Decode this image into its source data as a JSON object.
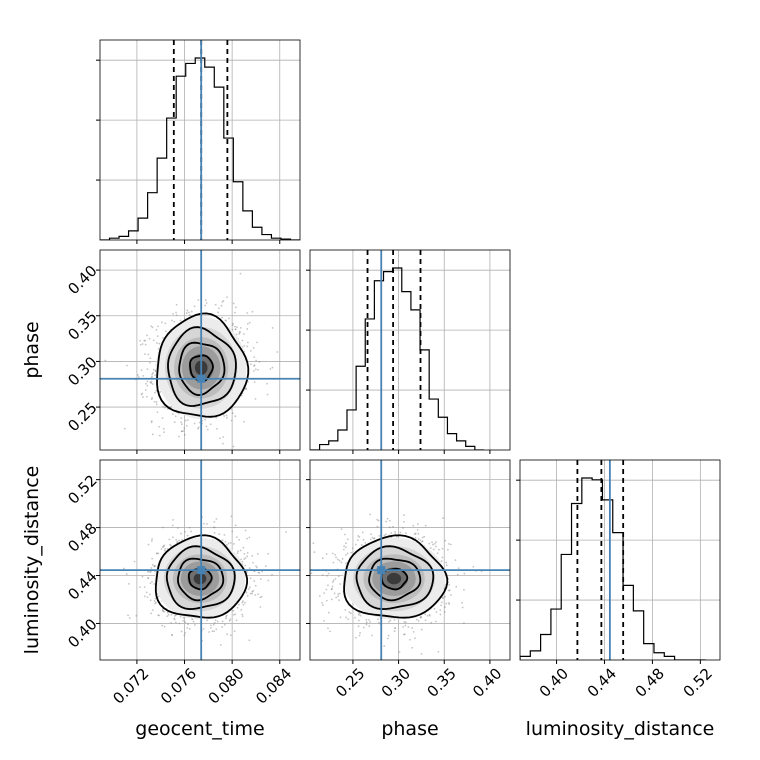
{
  "chart_data": {
    "type": "corner",
    "parameters": [
      {
        "name": "geocent_time",
        "ticks": [
          "0.072",
          "0.076",
          "0.080",
          "0.084"
        ],
        "tick_values": [
          0.072,
          0.076,
          0.08,
          0.084
        ],
        "range": [
          0.0689,
          0.0857
        ],
        "truth": 0.0774,
        "quantiles": [
          0.0751,
          0.0774,
          0.0796
        ]
      },
      {
        "name": "phase",
        "ticks": [
          "0.25",
          "0.30",
          "0.35",
          "0.40"
        ],
        "tick_values": [
          0.25,
          0.3,
          0.35,
          0.4
        ],
        "range": [
          0.203,
          0.422
        ],
        "truth": 0.281,
        "quantiles": [
          0.266,
          0.294,
          0.324
        ]
      },
      {
        "name": "luminosity_distance",
        "ticks": [
          "0.40",
          "0.44",
          "0.48",
          "0.52"
        ],
        "tick_values": [
          0.4,
          0.44,
          0.48,
          0.52
        ],
        "range": [
          0.3695,
          0.5364
        ],
        "truth": 0.4445,
        "quantiles": [
          0.4174,
          0.4374,
          0.4556
        ]
      }
    ],
    "histograms": [
      {
        "param": "geocent_time",
        "bin_edges": [
          0.0689,
          0.0697,
          0.0705,
          0.0713,
          0.0721,
          0.0729,
          0.0737,
          0.0745,
          0.0753,
          0.0761,
          0.0769,
          0.0777,
          0.0785,
          0.0793,
          0.0801,
          0.0809,
          0.0817,
          0.0825,
          0.0833,
          0.0841,
          0.0849,
          0.0857
        ],
        "density": [
          0.0,
          0.01,
          0.02,
          0.05,
          0.12,
          0.26,
          0.45,
          0.67,
          0.9,
          0.97,
          1.0,
          0.95,
          0.84,
          0.56,
          0.32,
          0.16,
          0.07,
          0.03,
          0.01,
          0.005,
          0.0
        ]
      },
      {
        "param": "phase",
        "bin_edges": [
          0.2035,
          0.2135,
          0.2235,
          0.2335,
          0.2435,
          0.2535,
          0.2635,
          0.2735,
          0.2835,
          0.2935,
          0.3035,
          0.3135,
          0.3235,
          0.3335,
          0.3435,
          0.3535,
          0.3635,
          0.3735,
          0.3835,
          0.3935
        ],
        "density": [
          0.0,
          0.03,
          0.05,
          0.11,
          0.22,
          0.46,
          0.72,
          0.93,
          0.98,
          1.0,
          0.87,
          0.77,
          0.55,
          0.28,
          0.18,
          0.09,
          0.05,
          0.02,
          0.0
        ]
      },
      {
        "param": "luminosity_distance",
        "bin_edges": [
          0.3695,
          0.3781,
          0.3867,
          0.3953,
          0.4039,
          0.4125,
          0.4211,
          0.4297,
          0.4383,
          0.4469,
          0.4555,
          0.4641,
          0.4727,
          0.4813,
          0.4899,
          0.4985,
          0.5071,
          0.5157,
          0.5243
        ],
        "density": [
          0.02,
          0.05,
          0.14,
          0.28,
          0.58,
          0.86,
          1.0,
          0.99,
          0.88,
          0.7,
          0.41,
          0.27,
          0.09,
          0.04,
          0.02,
          0.0,
          0.0,
          0.0
        ]
      }
    ],
    "pairs": [
      {
        "x": "geocent_time",
        "y": "phase",
        "center": [
          0.0774,
          0.293
        ],
        "sigma": [
          0.0019,
          0.028
        ],
        "rho": 0.05,
        "truth": [
          0.0774,
          0.281
        ]
      },
      {
        "x": "geocent_time",
        "y": "luminosity_distance",
        "center": [
          0.0773,
          0.4374
        ],
        "sigma": [
          0.0019,
          0.017
        ],
        "rho": 0.0,
        "truth": [
          0.0774,
          0.4445
        ]
      },
      {
        "x": "phase",
        "y": "luminosity_distance",
        "center": [
          0.295,
          0.4374
        ],
        "sigma": [
          0.028,
          0.017
        ],
        "rho": 0.0,
        "truth": [
          0.281,
          0.4445
        ]
      }
    ],
    "contour_levels_sigma": [
      0.5,
      1.0,
      1.5,
      2.0
    ],
    "truth_color": "#4682b4",
    "grid": true,
    "xlabels": [
      "geocent_time",
      "phase",
      "luminosity_distance"
    ],
    "ylabels": [
      "phase",
      "luminosity_distance"
    ]
  }
}
